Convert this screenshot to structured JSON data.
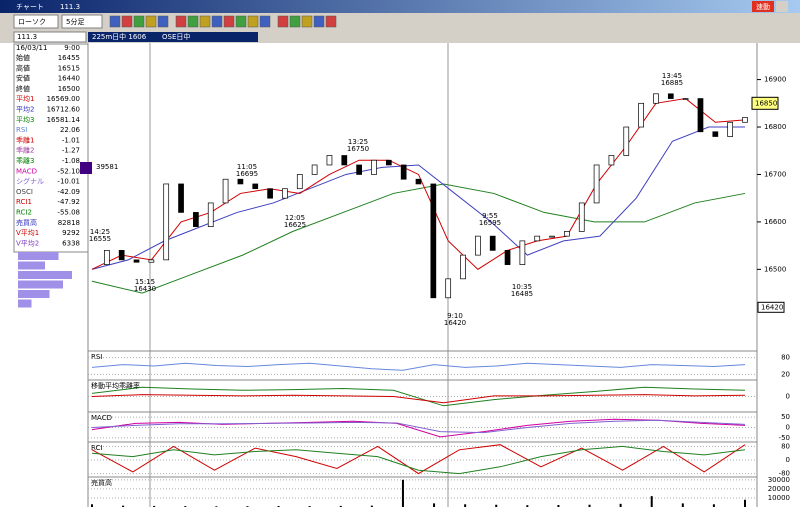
{
  "window": {
    "title": "チャート",
    "code": "111.3",
    "badge": "速動"
  },
  "toolbar": {
    "chart_type": "ローソク",
    "interval": "5分足"
  },
  "header": {
    "code": "111.3",
    "contract": "225m日中 1606",
    "market": "OSE日中"
  },
  "info": {
    "date": "16/03/11",
    "time": "9:00",
    "rows": [
      {
        "label": "始値",
        "value": 16455,
        "color": "#000000"
      },
      {
        "label": "高値",
        "value": 16515,
        "color": "#000000"
      },
      {
        "label": "安値",
        "value": 16440,
        "color": "#000000"
      },
      {
        "label": "終値",
        "value": 16500,
        "color": "#000000"
      },
      {
        "label": "平均1",
        "value": {
          "value": 16569,
          "label": "16569.00"
        },
        "color": "#d00000"
      },
      {
        "label": "平均2",
        "value": {
          "value": 16712.6,
          "label": "16712.60"
        },
        "color": "#3030c0"
      },
      {
        "label": "平均3",
        "value": 16581.14,
        "color": "#008000"
      },
      {
        "label": "RSI",
        "value": 22.06,
        "color": "#5a7fd8"
      },
      {
        "label": "乖離1",
        "value": -1.01,
        "color": "#d00000"
      },
      {
        "label": "乖離2",
        "value": -1.27,
        "color": "#a040a0"
      },
      {
        "label": "乖離3",
        "value": -1.08,
        "color": "#008000"
      },
      {
        "label": "MACD",
        "value": {
          "value": -52.1,
          "label": "-52.10"
        },
        "color": "#d000a0"
      },
      {
        "label": "シグナル",
        "value": -10.01,
        "color": "#8060d0"
      },
      {
        "label": "OSCI",
        "value": -42.09,
        "color": "#404040"
      },
      {
        "label": "RCI1",
        "value": -47.92,
        "color": "#d00000"
      },
      {
        "label": "RCI2",
        "value": -55.08,
        "color": "#008000"
      },
      {
        "label": "売買高",
        "value": 82818,
        "color": "#3030c0"
      },
      {
        "label": "V平均1",
        "value": 9292,
        "color": "#d00000"
      },
      {
        "label": "V平均2",
        "value": 6338,
        "color": "#8040c0"
      }
    ]
  },
  "main": {
    "ylim": [
      16330,
      16975
    ],
    "yticks": [
      16500,
      16600,
      16700,
      16800,
      16900
    ],
    "price": [
      16510,
      16540,
      16520,
      16515,
      16520,
      16680,
      16620,
      16590,
      16640,
      16690,
      16680,
      16670,
      16650,
      16670,
      16700,
      16720,
      16740,
      16720,
      16700,
      16730,
      16720,
      16690,
      16680,
      16440,
      16480,
      16530,
      16570,
      16540,
      16510,
      16560,
      16570,
      16570,
      16580,
      16640,
      16720,
      16740,
      16800,
      16850,
      16870,
      16860,
      16860,
      16790,
      16780,
      16810,
      16820
    ],
    "ma1": {
      "color": "#d00000",
      "values": [
        16500,
        16530,
        16520,
        16600,
        16620,
        16660,
        16670,
        16660,
        16700,
        16730,
        16730,
        16700,
        16560,
        16500,
        16540,
        16560,
        16570,
        16680,
        16760,
        16850,
        16860,
        16810,
        16815
      ]
    },
    "ma2": {
      "color": "#4040c0",
      "values": [
        16500,
        16520,
        16560,
        16590,
        16620,
        16640,
        16670,
        16700,
        16715,
        16720,
        16660,
        16600,
        16530,
        16560,
        16570,
        16650,
        16770,
        16800,
        16800
      ]
    },
    "ma3": {
      "color": "#208020",
      "values": [
        16475,
        16450,
        16490,
        16530,
        16580,
        16620,
        16660,
        16680,
        16660,
        16620,
        16600,
        16600,
        16640,
        16660
      ]
    },
    "annotations": [
      {
        "time": "14:25",
        "price": 16555
      },
      {
        "time": "15:15",
        "price": 16430
      },
      {
        "time": "11:05",
        "price": 16695
      },
      {
        "time": "12:05",
        "price": 16625
      },
      {
        "time": "13:25",
        "price": 16750
      },
      {
        "time": "9:55",
        "price": 16595
      },
      {
        "time": "10:35",
        "price": 16485
      },
      {
        "time": "9:10",
        "price": 16420
      },
      {
        "time": "13:45",
        "price": 16885
      }
    ],
    "last": 16850,
    "low": 16420,
    "profile_top": 39581,
    "profile": [
      9000,
      6000,
      12000,
      10000,
      7000,
      3000
    ]
  },
  "panels": [
    {
      "title": "RSI",
      "ylim": [
        0,
        100
      ],
      "yticks": [
        80,
        20
      ],
      "series": [
        {
          "color": "#6688dd",
          "values": [
            45,
            55,
            50,
            60,
            52,
            48,
            55,
            60,
            50,
            40,
            35,
            55,
            45,
            50,
            60,
            55,
            50,
            45,
            55,
            52,
            48,
            55
          ]
        }
      ]
    },
    {
      "title": "移動平均乖離率",
      "ylim": [
        -2.5,
        2.5
      ],
      "yticks": [
        0
      ],
      "series": [
        {
          "color": "#208020",
          "values": [
            0.5,
            1.5,
            1.2,
            1.0,
            1.1,
            1.3,
            1.0,
            -1.5,
            -0.5,
            0.2,
            0.8,
            1.5,
            1.2,
            1.0
          ]
        },
        {
          "color": "#d00000",
          "values": [
            0,
            0.3,
            0.2,
            0.1,
            0.2,
            0.1,
            0,
            -1,
            0.1,
            0.1,
            0.2,
            0.3,
            0.1,
            0.2
          ]
        }
      ]
    },
    {
      "title": "MACD",
      "ylim": [
        -70,
        70
      ],
      "yticks": [
        50,
        0,
        -50
      ],
      "series": [
        {
          "color": "#d000a0",
          "values": [
            -10,
            20,
            25,
            15,
            20,
            25,
            30,
            20,
            -45,
            -20,
            10,
            30,
            40,
            35,
            20,
            10
          ]
        },
        {
          "color": "#8060d0",
          "values": [
            0,
            10,
            18,
            18,
            20,
            22,
            25,
            22,
            -20,
            -25,
            0,
            20,
            30,
            35,
            25,
            15
          ]
        }
      ]
    },
    {
      "title": "RCI",
      "ylim": [
        -100,
        100
      ],
      "yticks": [
        80,
        0,
        -80
      ],
      "series": [
        {
          "color": "#d00000",
          "values": [
            60,
            -70,
            80,
            -60,
            70,
            20,
            -50,
            80,
            -80,
            60,
            90,
            -40,
            70,
            -60,
            80,
            -70,
            90
          ]
        },
        {
          "color": "#208020",
          "values": [
            40,
            20,
            60,
            30,
            50,
            60,
            40,
            20,
            -60,
            -80,
            -40,
            20,
            60,
            80,
            50,
            30,
            60
          ]
        }
      ]
    },
    {
      "title": "売買高",
      "ylim": [
        0,
        32000
      ],
      "yticks": [
        30000,
        20000,
        10000
      ],
      "bars": {
        "color": "#000000",
        "values": [
          3000,
          1500,
          1200,
          1000,
          800,
          900,
          1100,
          1000,
          1200,
          1500,
          30000,
          4000,
          3000,
          2500,
          2000,
          2200,
          2500,
          3500,
          12000,
          4000,
          3000,
          8000
        ]
      }
    }
  ]
}
